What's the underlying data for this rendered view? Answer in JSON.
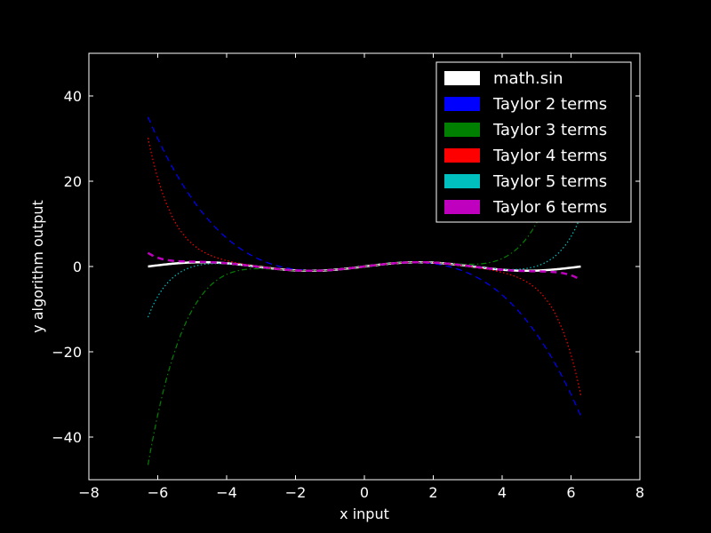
{
  "chart_data": {
    "type": "line",
    "title": "",
    "xlabel": "x input",
    "ylabel": "y algorithm output",
    "xlim": [
      -8,
      8
    ],
    "ylim": [
      -50,
      50
    ],
    "x_domain": [
      -6.283,
      6.283
    ],
    "xticks": [
      -8,
      -6,
      -4,
      -2,
      0,
      2,
      4,
      6,
      8
    ],
    "yticks": [
      -40,
      -20,
      0,
      20,
      40
    ],
    "xtick_labels": [
      "−8",
      "−6",
      "−4",
      "−2",
      "0",
      "2",
      "4",
      "6",
      "8"
    ],
    "ytick_labels": [
      "−40",
      "−20",
      "0",
      "20",
      "40"
    ],
    "grid": false,
    "legend_position": "top-right",
    "background": "#000000",
    "foreground": "#ffffff",
    "series": [
      {
        "name": "math.sin",
        "terms": 0,
        "color": "#ffffff",
        "style": "solid"
      },
      {
        "name": "Taylor 2 terms",
        "terms": 2,
        "color": "#0000ff",
        "style": "dashed"
      },
      {
        "name": "Taylor 3 terms",
        "terms": 3,
        "color": "#008000",
        "style": "dashdot"
      },
      {
        "name": "Taylor 4 terms",
        "terms": 4,
        "color": "#ff0000",
        "style": "dotted"
      },
      {
        "name": "Taylor 5 terms",
        "terms": 5,
        "color": "#00bfbf",
        "style": "dotted"
      },
      {
        "name": "Taylor 6 terms",
        "terms": 6,
        "color": "#bf00bf",
        "style": "dashed"
      }
    ]
  }
}
